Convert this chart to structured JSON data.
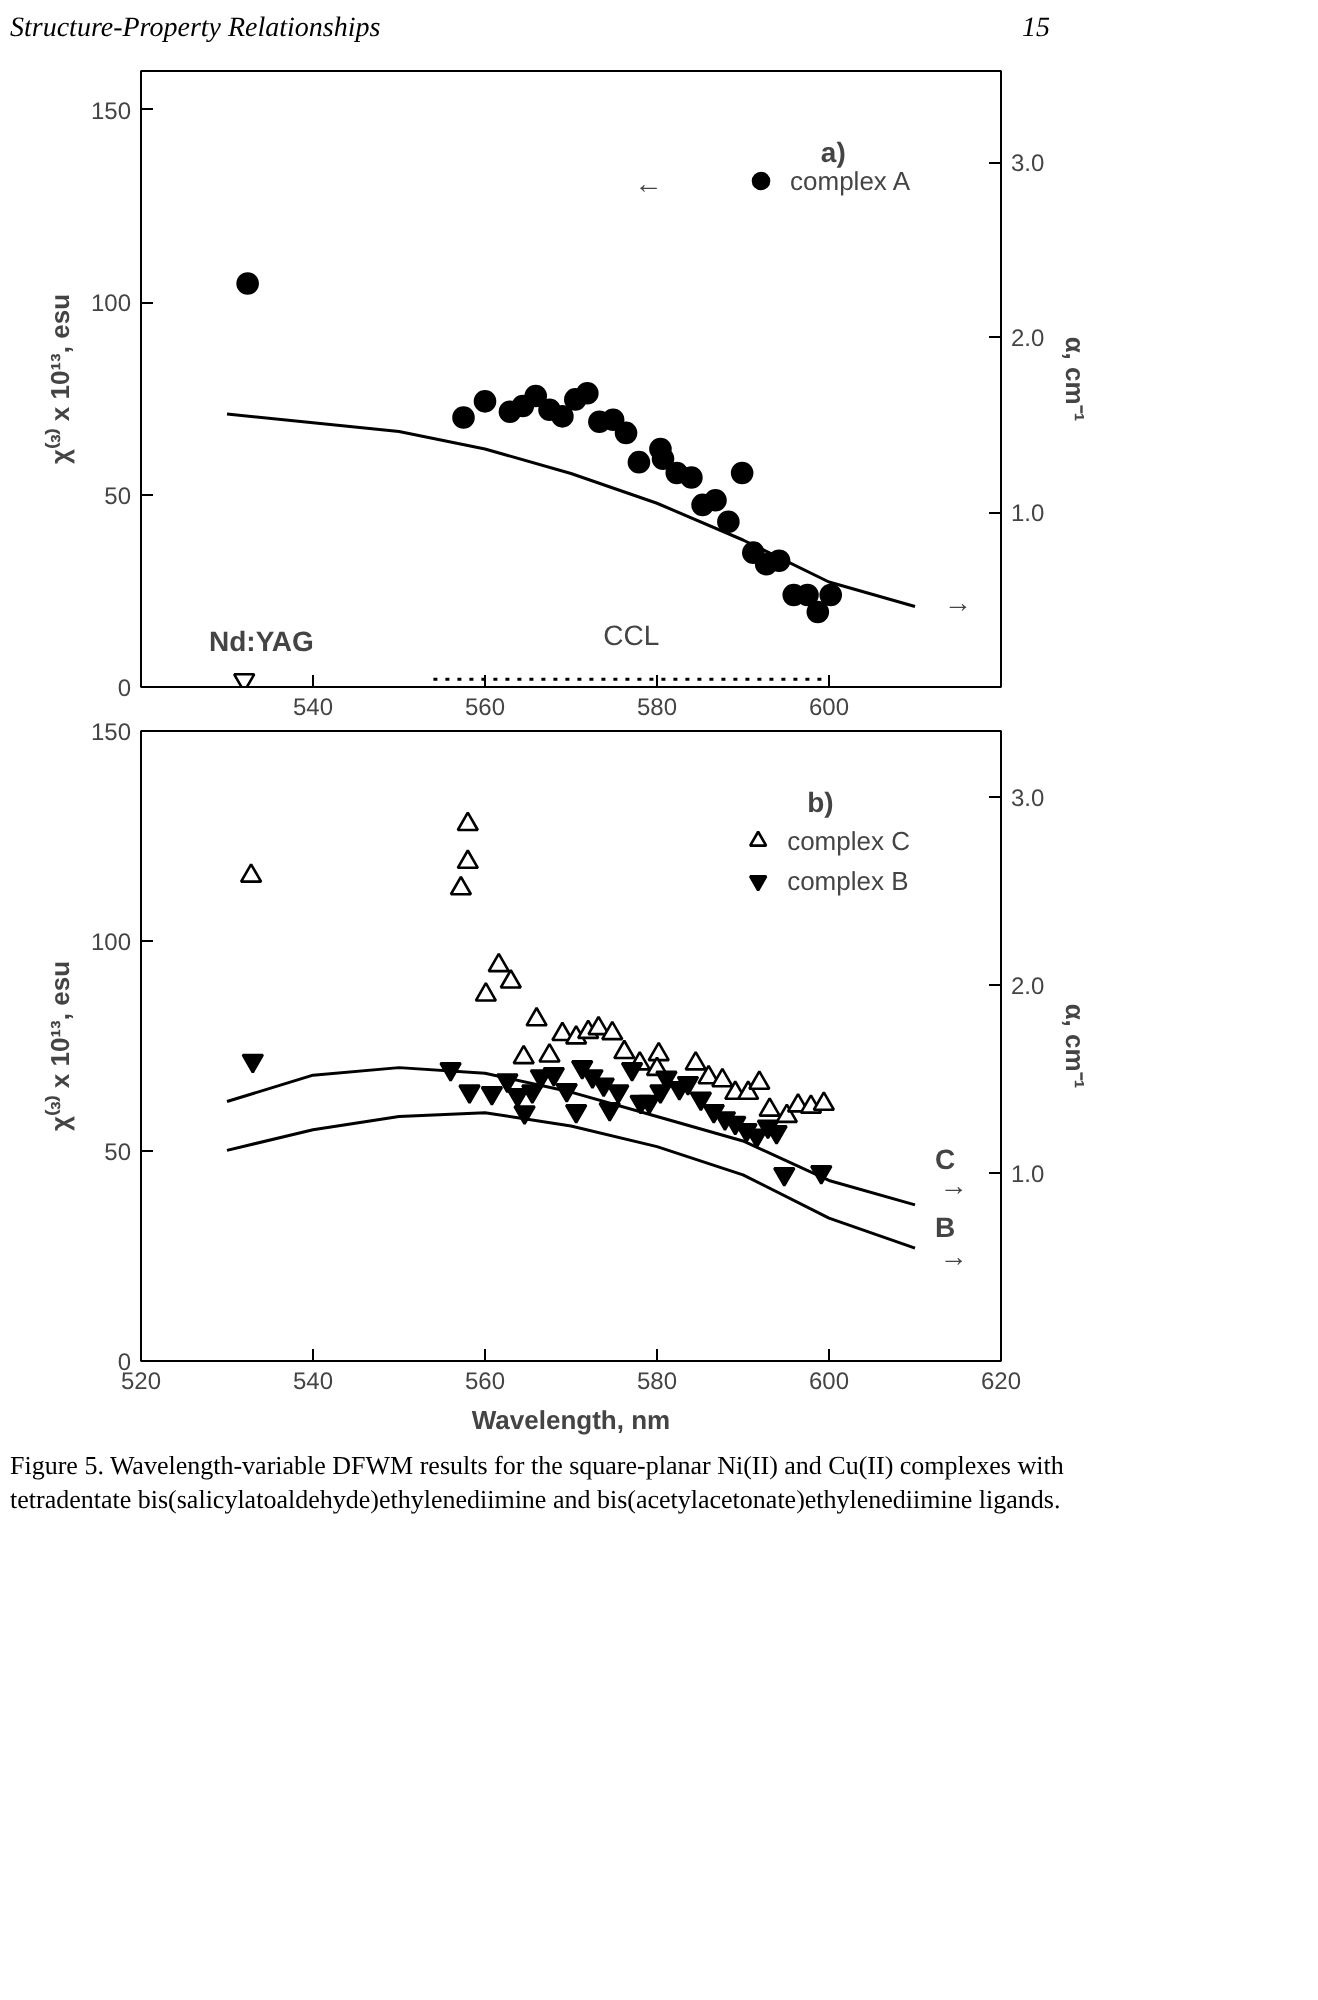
{
  "chart_data": [
    {
      "type": "scatter",
      "ylabel": "χ⁽³⁾ x 10¹³, esu",
      "y2label": "α, cm⁻¹",
      "xlim": [
        520,
        620
      ],
      "xticks": [
        {
          "value": 520,
          "label": null
        },
        540,
        560,
        580,
        600,
        {
          "value": 620,
          "label": null
        }
      ],
      "ylim": [
        0,
        160
      ],
      "yticks": [
        0,
        50,
        100,
        150
      ],
      "y2lim": [
        0,
        3.52
      ],
      "y2ticks": [
        {
          "value": 1.0,
          "label": "1.0"
        },
        {
          "value": 2.0,
          "label": "2.0"
        },
        {
          "value": 3.0,
          "label": "3.0"
        }
      ],
      "grid": false,
      "legend": "top right",
      "series": [
        {
          "name": "complex A",
          "color": "#000000",
          "marker": "circle",
          "x": [
            532.4,
            557.5,
            560,
            562.9,
            564.4,
            565.9,
            567.5,
            569,
            570.5,
            571.9,
            573.3,
            574.9,
            576.4,
            577.9,
            580.4,
            580.7,
            582.3,
            584,
            585.3,
            586.8,
            588.3,
            589.9,
            591.2,
            592.7,
            594.2,
            595.9,
            597.5,
            598.7,
            600.2
          ],
          "values": [
            104.8,
            70,
            74.2,
            71.5,
            73,
            75.6,
            72,
            70.3,
            74.7,
            76.3,
            68.9,
            69.4,
            66,
            58.4,
            61.8,
            59.3,
            55.6,
            54.4,
            47.3,
            48.5,
            42.9,
            55.6,
            34.9,
            31.9,
            32.8,
            23.9,
            23.9,
            19.5,
            23.9
          ]
        },
        {
          "type": "line",
          "axis": "y2",
          "color": "#000000",
          "line_style": "solid",
          "x": [
            530,
            540,
            550,
            560,
            570,
            580,
            590,
            600,
            610
          ],
          "values": [
            1.56,
            1.51,
            1.46,
            1.36,
            1.22,
            1.05,
            0.84,
            0.6,
            0.46
          ]
        },
        {
          "color": "#000000",
          "marker": "triangle",
          "x": [
            532
          ],
          "values": [
            1.8
          ]
        },
        {
          "type": "line",
          "name": "CCL",
          "color": "#000000",
          "line_style": "dotted",
          "x": [
            554,
            600
          ],
          "values": [
            2,
            2
          ]
        }
      ],
      "annotations": [
        "Structure-Property Relationships",
        "15",
        "a)",
        "←",
        "→",
        "Nd:YAG"
      ]
    },
    {
      "type": "scatter",
      "xlabel": "Wavelength, nm",
      "ylabel": "χ⁽³⁾ x 10¹³, esu",
      "y2label": "α, cm⁻¹",
      "xlim": [
        520,
        620
      ],
      "xticks": [
        520,
        540,
        560,
        580,
        600,
        620
      ],
      "ylim": [
        0,
        150
      ],
      "yticks": [
        0,
        50,
        100,
        150
      ],
      "y2lim": [
        0,
        3.35
      ],
      "y2ticks": [
        {
          "value": 1.0,
          "label": "1.0"
        },
        {
          "value": 2.0,
          "label": "2.0"
        },
        {
          "value": 3.0,
          "label": "3.0"
        }
      ],
      "grid": false,
      "legend": "top right",
      "series": [
        {
          "name": "complex C",
          "color": "#000000",
          "marker": "triangle",
          "x": [
            532.8,
            558.0,
            558.0,
            557.2,
            561.6,
            563.0,
            560.1,
            566.0,
            564.5,
            567.5,
            569.0,
            570.6,
            572.0,
            573.2,
            574.8,
            576.2,
            578.0,
            580.2,
            580.0,
            582.0,
            584.5,
            586.0,
            587.6,
            589.1,
            590.6,
            591.9,
            593.1,
            595.1,
            596.4,
            597.9,
            599.4
          ],
          "values": [
            115.5,
            127.8,
            118.8,
            112.5,
            94.2,
            90.3,
            87.2,
            81.3,
            72.3,
            72.7,
            77.8,
            77,
            78.3,
            79.2,
            78,
            73.5,
            70.8,
            73,
            69.5,
            null,
            70.8,
            67.5,
            66.8,
            63.8,
            63.8,
            66.2,
            59.8,
            58.3,
            60.8,
            60.5,
            61.2
          ]
        },
        {
          "name": "complex B",
          "color": "#000000",
          "marker": "triangle",
          "x": [
            533.0,
            556.0,
            558.2,
            560.8,
            562.6,
            563.8,
            564.6,
            565.5,
            566.5,
            568.0,
            569.5,
            570.6,
            571.3,
            572.5,
            573.8,
            574.5,
            575.5,
            577.1,
            578.1,
            579.1,
            580.4,
            581.1,
            582.6,
            583.6,
            585.1,
            586.6,
            587.9,
            589.1,
            590.4,
            591.6,
            592.9,
            593.9,
            594.8,
            599.1
          ],
          "values": [
            71.5,
            69.5,
            64.2,
            63.8,
            66.8,
            63.3,
            59.2,
            64.2,
            67.8,
            68.3,
            64.5,
            59.5,
            70,
            67.8,
            65.8,
            60,
            64.2,
            69.5,
            61.7,
            61.7,
            64.2,
            67.5,
            65,
            66.2,
            62.5,
            59.5,
            57.8,
            56.7,
            55,
            53.7,
            55.8,
            54.5,
            44.5,
            45
          ]
        },
        {
          "type": "line",
          "axis": "y2",
          "color": "#000000",
          "line_style": "solid",
          "x": [
            530,
            540,
            550,
            560,
            570,
            580,
            590,
            600,
            610
          ],
          "values": [
            1.38,
            1.52,
            1.56,
            1.53,
            1.43,
            1.3,
            1.17,
            0.96,
            0.83
          ]
        },
        {
          "type": "line",
          "axis": "y2",
          "color": "#000000",
          "line_style": "solid",
          "x": [
            530,
            540,
            550,
            560,
            570,
            580,
            590,
            600,
            610
          ],
          "values": [
            1.12,
            1.23,
            1.3,
            1.32,
            1.25,
            1.14,
            0.99,
            0.76,
            0.6
          ]
        }
      ],
      "annotations": [
        "b)",
        "C",
        "→",
        "B",
        "→",
        "Figure 5.  Wavelength-variable DFWM results for the square-planar Ni(II) and Cu(II) complexes with tetradentate bis(salicylatoaldehyde)ethylenediimine and bis(acetylacetonate)ethylenediimine ligands."
      ]
    }
  ]
}
